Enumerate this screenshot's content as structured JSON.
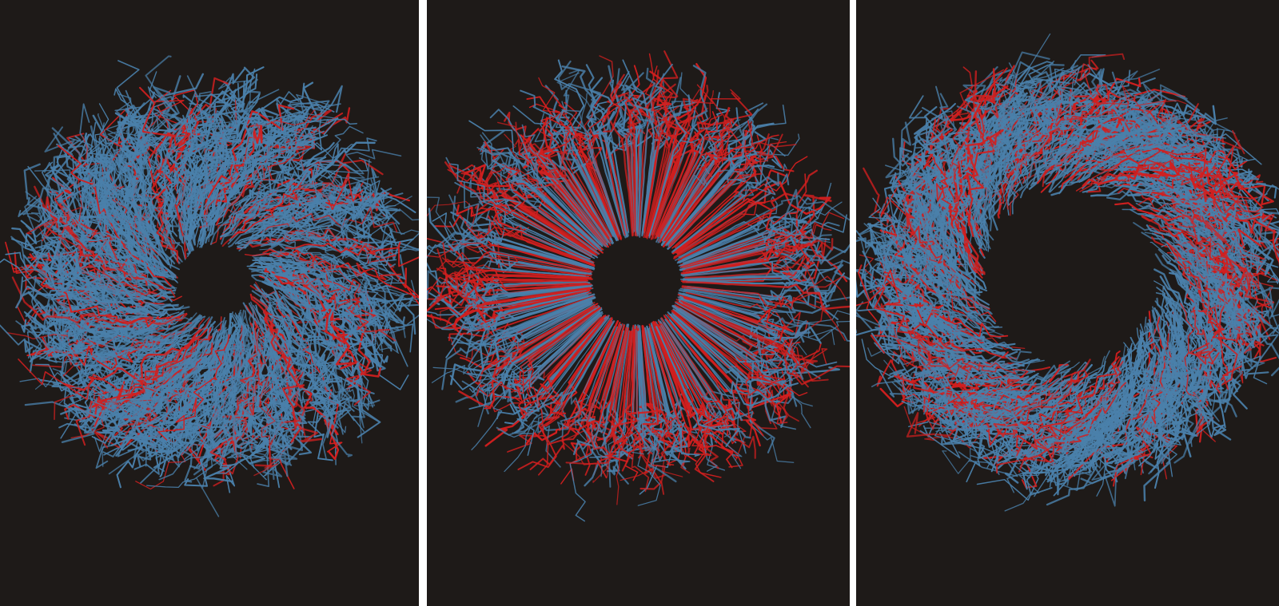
{
  "colors": {
    "background": "#1e1a18",
    "gap": "#ffffff",
    "strand_blue": "#4a80aa",
    "strand_red": "#d21f1f"
  }
}
